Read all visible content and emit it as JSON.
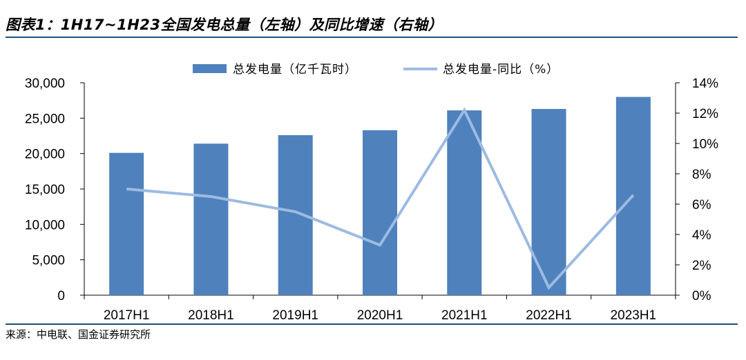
{
  "title": "图表1：1H17~1H23全国发电总量（左轴）及同比增速（右轴）",
  "source": "来源：中电联、国金证券研究所",
  "colors": {
    "bar": "#4f81bd",
    "line": "#9dbbe1",
    "rule": "#1f4e79"
  },
  "chart_data": {
    "type": "bar",
    "categories": [
      "2017H1",
      "2018H1",
      "2019H1",
      "2020H1",
      "2021H1",
      "2022H1",
      "2023H1"
    ],
    "series": [
      {
        "name": "总发电量（亿千瓦时）",
        "type": "bar",
        "axis": "left",
        "values": [
          20100,
          21400,
          22600,
          23300,
          26100,
          26300,
          28000
        ]
      },
      {
        "name": "总发电量-同比（%）",
        "type": "line",
        "axis": "right",
        "values": [
          7.0,
          6.5,
          5.5,
          3.3,
          12.2,
          0.5,
          6.6
        ]
      }
    ],
    "y_left": {
      "ticks": [
        "0",
        "5,000",
        "10,000",
        "15,000",
        "20,000",
        "25,000",
        "30,000"
      ],
      "lim": [
        0,
        30000
      ]
    },
    "y_right": {
      "ticks": [
        "0%",
        "2%",
        "4%",
        "6%",
        "8%",
        "10%",
        "12%",
        "14%"
      ],
      "lim": [
        0,
        14
      ]
    },
    "legend": "top",
    "grid": false
  }
}
